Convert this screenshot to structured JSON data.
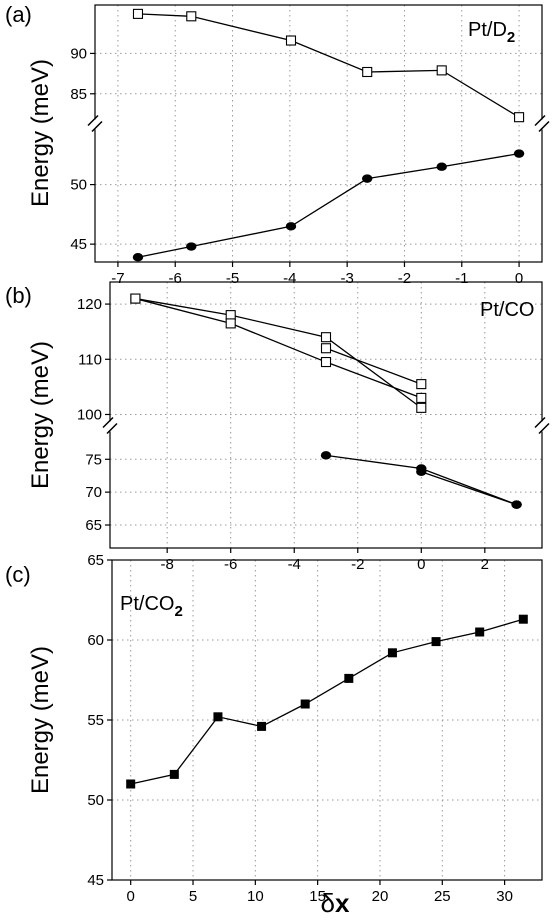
{
  "figure": {
    "xlabel": "δx",
    "break_mark": "//"
  },
  "chart_data": [
    {
      "type": "line",
      "panel_label": "(a)",
      "system_label": "Pt/D",
      "system_sub": "2",
      "ylabel": "Energy (meV)",
      "xlim": [
        -7.4,
        0.4
      ],
      "x_ticks": [
        -7,
        -6,
        -5,
        -4,
        -3,
        -2,
        -1,
        0
      ],
      "y_break": true,
      "y_segments": [
        {
          "range": [
            82,
            96
          ],
          "ticks": [
            85,
            90
          ]
        },
        {
          "range": [
            43.5,
            54.5
          ],
          "ticks": [
            45,
            50
          ]
        }
      ],
      "grid": true,
      "series": [
        {
          "marker": "open-square",
          "x": [
            -6.65,
            -5.72,
            -3.98,
            -2.65,
            -1.35,
            0
          ],
          "y": [
            94.9,
            94.6,
            91.6,
            87.7,
            87.9,
            82.1
          ]
        },
        {
          "marker": "filled-circle",
          "x": [
            -6.65,
            -5.72,
            -3.98,
            -2.65,
            -1.35,
            0
          ],
          "y": [
            43.9,
            44.8,
            46.5,
            50.5,
            51.5,
            52.6
          ]
        }
      ]
    },
    {
      "type": "line",
      "panel_label": "(b)",
      "system_label": "Pt/CO",
      "system_sub": "",
      "ylabel": "Energy (meV)",
      "xlim": [
        -9.8,
        3.8
      ],
      "x_ticks": [
        -8,
        -6,
        -4,
        -2,
        0,
        2
      ],
      "y_break": true,
      "y_segments": [
        {
          "range": [
            99,
            124
          ],
          "ticks": [
            100,
            110,
            120
          ]
        },
        {
          "range": [
            61.5,
            79
          ],
          "ticks": [
            65,
            70,
            75
          ]
        }
      ],
      "grid": true,
      "series": [
        {
          "marker": "open-square",
          "x": [
            -9,
            -6,
            -3,
            0
          ],
          "y": [
            121,
            118,
            114,
            101.2
          ]
        },
        {
          "marker": "open-square",
          "x": [
            -9,
            -6,
            -3,
            0
          ],
          "y": [
            121,
            116.5,
            109.5,
            103
          ]
        },
        {
          "marker": "open-square",
          "x": [
            -3,
            0
          ],
          "y": [
            112,
            105.5
          ]
        },
        {
          "marker": "filled-circle",
          "x": [
            -3,
            0,
            3
          ],
          "y": [
            75.6,
            73.6,
            68.1
          ]
        },
        {
          "marker": "filled-circle",
          "x": [
            0,
            3
          ],
          "y": [
            73.1,
            68.1
          ]
        }
      ]
    },
    {
      "type": "line",
      "panel_label": "(c)",
      "system_label": "Pt/CO",
      "system_sub": "2",
      "ylabel": "Energy (meV)",
      "xlim": [
        -1.5,
        33
      ],
      "x_ticks": [
        0,
        5,
        10,
        15,
        20,
        25,
        30
      ],
      "y_break": false,
      "y_segments": [
        {
          "range": [
            45,
            65
          ],
          "ticks": [
            45,
            50,
            55,
            60,
            65
          ]
        }
      ],
      "grid": true,
      "series": [
        {
          "marker": "filled-square",
          "x": [
            0,
            3.5,
            7,
            10.5,
            14,
            17.5,
            21,
            24.5,
            28,
            31.5
          ],
          "y": [
            51.0,
            51.6,
            55.2,
            54.6,
            56.0,
            57.6,
            59.2,
            59.9,
            60.5,
            61.3
          ]
        }
      ]
    }
  ]
}
